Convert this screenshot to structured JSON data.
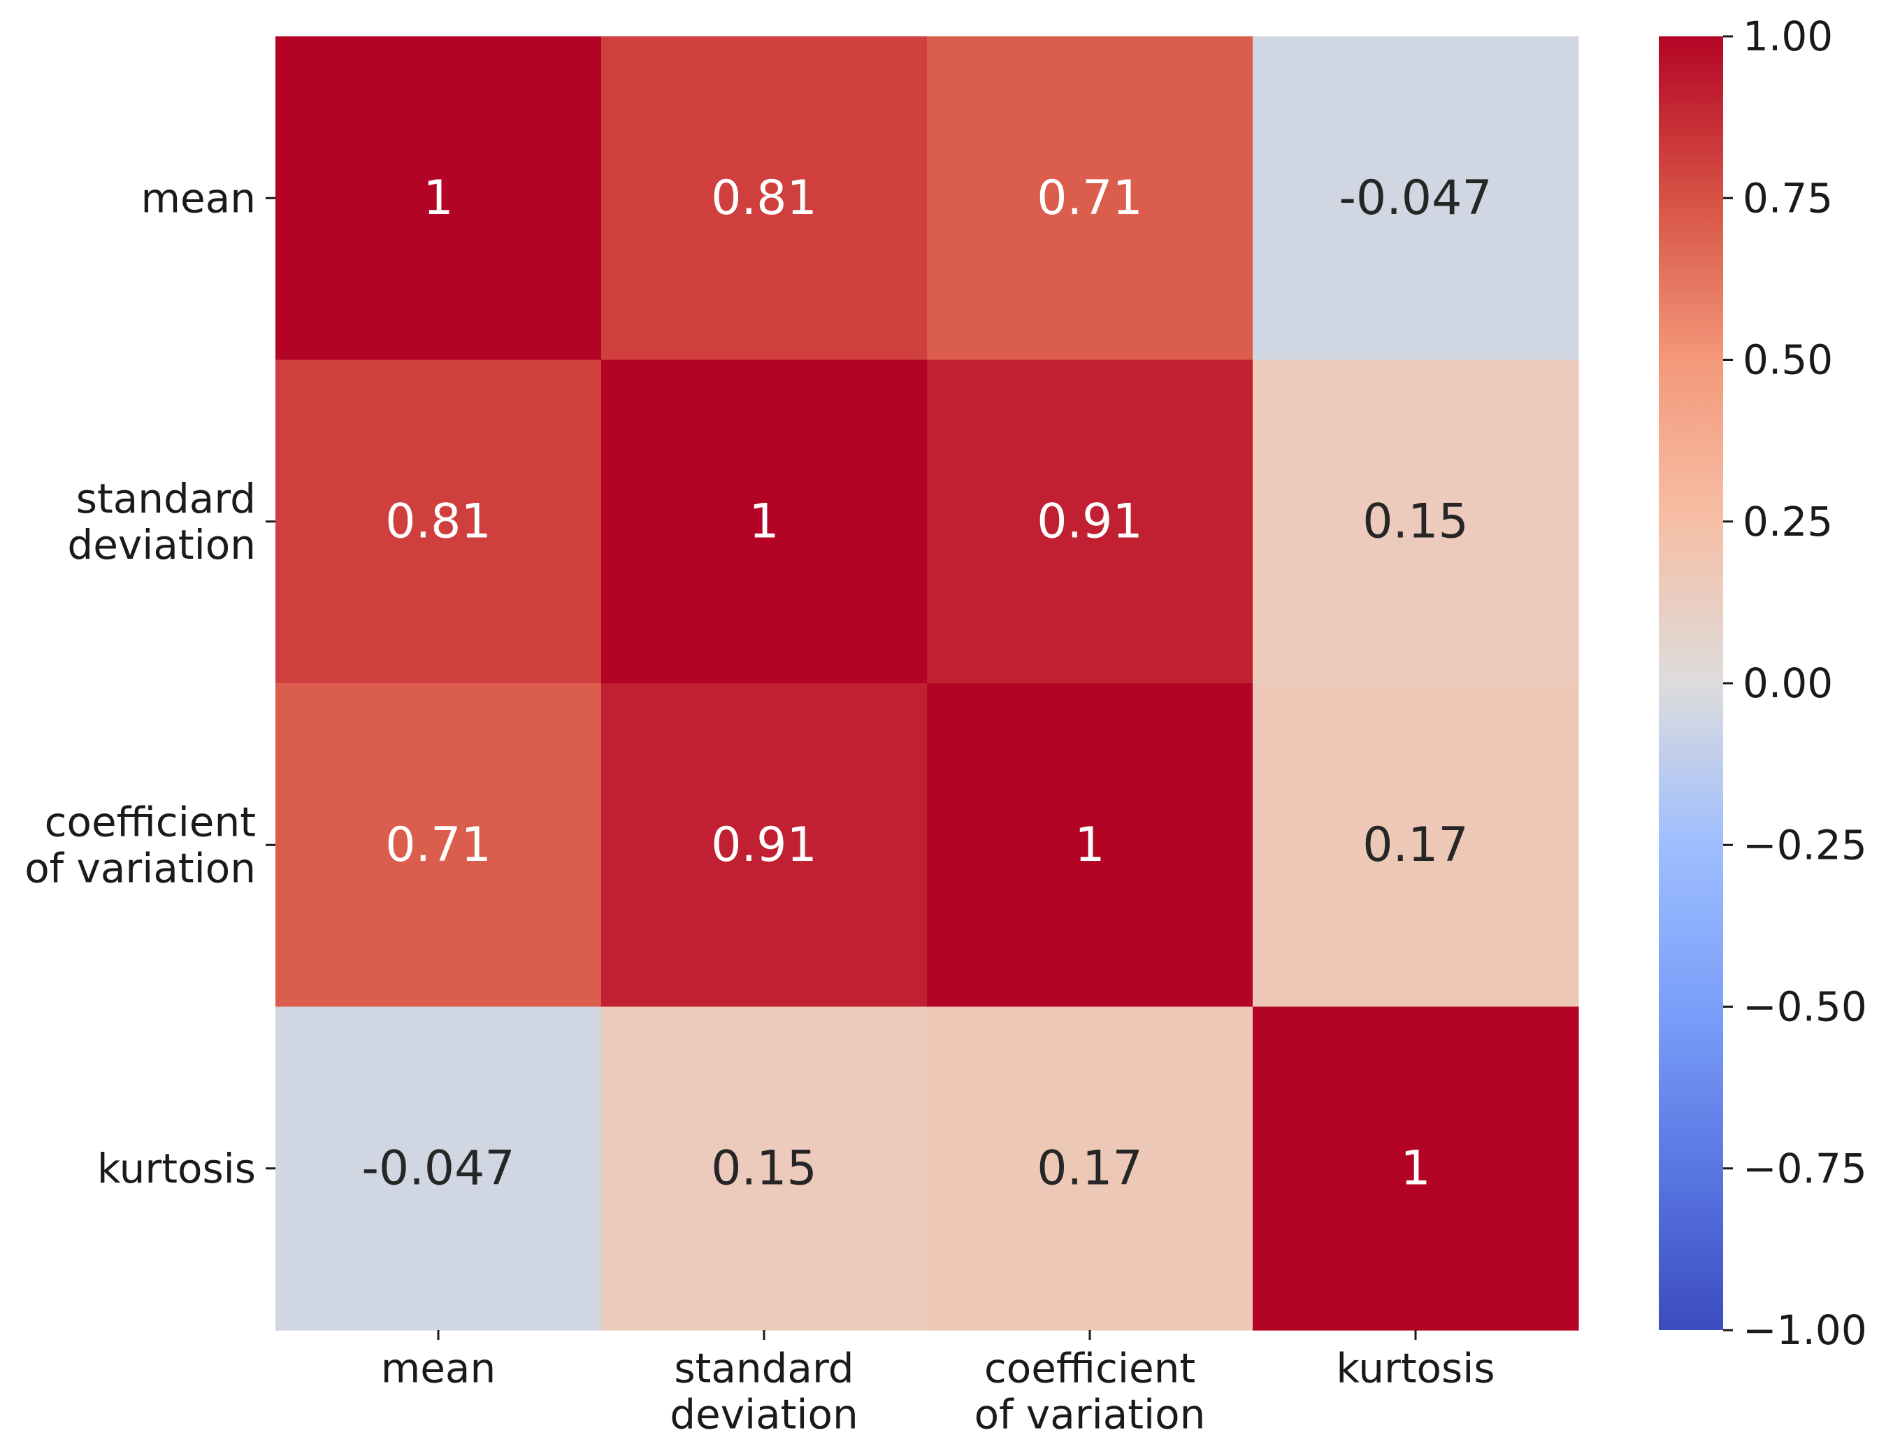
{
  "chart_data": {
    "type": "heatmap",
    "title": "",
    "xlabel": "",
    "ylabel": "",
    "rows": [
      [
        "mean"
      ],
      [
        "standard",
        "deviation"
      ],
      [
        "coefficient",
        "of variation"
      ],
      [
        "kurtosis"
      ]
    ],
    "columns": [
      [
        "mean"
      ],
      [
        "standard",
        "deviation"
      ],
      [
        "coefficient",
        "of variation"
      ],
      [
        "kurtosis"
      ]
    ],
    "values": [
      [
        1,
        0.81,
        0.71,
        -0.047
      ],
      [
        0.81,
        1,
        0.91,
        0.15
      ],
      [
        0.71,
        0.91,
        1,
        0.17
      ],
      [
        -0.047,
        0.15,
        0.17,
        1
      ]
    ],
    "annotations": [
      [
        "1",
        "0.81",
        "0.71",
        "-0.047"
      ],
      [
        "0.81",
        "1",
        "0.91",
        "0.15"
      ],
      [
        "0.71",
        "0.91",
        "1",
        "0.17"
      ],
      [
        "-0.047",
        "0.15",
        "0.17",
        "1"
      ]
    ],
    "colormap": "coolwarm",
    "vmin": -1,
    "vmax": 1,
    "colorbar": {
      "ticks": [
        1,
        0.75,
        0.5,
        0.25,
        0,
        -0.25,
        -0.5,
        -0.75,
        -1
      ],
      "tick_labels": [
        "1.00",
        "0.75",
        "0.50",
        "0.25",
        "0.00",
        "−0.25",
        "−0.50",
        "−0.75",
        "−1.00"
      ],
      "placement": "right"
    },
    "grid": false
  }
}
